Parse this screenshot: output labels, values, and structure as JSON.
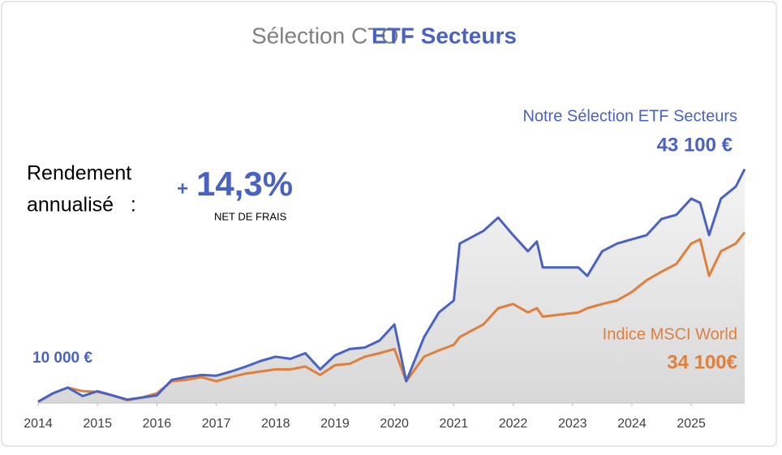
{
  "chart_data": {
    "type": "line",
    "title": [
      "Sélection CTO - ",
      "ETF Secteurs"
    ],
    "x": [
      2014,
      2014.25,
      2014.5,
      2014.75,
      2015,
      2015.25,
      2015.5,
      2015.75,
      2016,
      2016.25,
      2016.5,
      2016.75,
      2017,
      2017.25,
      2017.5,
      2017.75,
      2018,
      2018.25,
      2018.5,
      2018.75,
      2019,
      2019.25,
      2019.5,
      2019.75,
      2020,
      2020.2,
      2020.5,
      2020.75,
      2021,
      2021.1,
      2021.5,
      2021.75,
      2022,
      2022.25,
      2022.4,
      2022.5,
      2023.1,
      2023.25,
      2023.5,
      2023.75,
      2024,
      2024.25,
      2024.5,
      2024.75,
      2025,
      2025.15,
      2025.3,
      2025.5,
      2025.75,
      2025.9
    ],
    "series": [
      {
        "name": "Notre Sélection ETF Secteurs",
        "color": "#4a63c0",
        "values": [
          10000,
          11200,
          12000,
          10800,
          11500,
          10900,
          10300,
          10600,
          10900,
          13100,
          13500,
          13800,
          13700,
          14300,
          15000,
          15800,
          16400,
          16100,
          16900,
          14600,
          16600,
          17500,
          17700,
          18700,
          21000,
          12900,
          19200,
          22700,
          24400,
          32500,
          34300,
          36200,
          33700,
          31400,
          32800,
          29100,
          29100,
          27900,
          31400,
          32500,
          33100,
          33700,
          36000,
          36600,
          38900,
          38300,
          33700,
          38900,
          40600,
          43100
        ]
      },
      {
        "name": "Indice MSCI World",
        "color": "#e07f3c",
        "values": [
          10000,
          11200,
          12000,
          11500,
          11400,
          10900,
          10200,
          10600,
          11200,
          12900,
          13100,
          13500,
          12900,
          13500,
          14000,
          14300,
          14600,
          14600,
          15000,
          13800,
          15200,
          15400,
          16400,
          16900,
          17500,
          12900,
          16400,
          17300,
          18100,
          19200,
          21000,
          23300,
          23900,
          22700,
          23300,
          22100,
          22700,
          23300,
          23900,
          24400,
          25600,
          27300,
          28500,
          29600,
          32500,
          33100,
          27900,
          31400,
          32500,
          34100
        ]
      }
    ],
    "annotations": [
      "43 100 €",
      "10 000 €",
      "34 100€",
      "Rendement",
      "annualisé   :",
      "+",
      "14,3%",
      "NET DE FRAIS"
    ],
    "xlim": [
      2014,
      2025.9
    ],
    "xticks": [
      2014,
      2015,
      2016,
      2017,
      2018,
      2019,
      2020,
      2021,
      2022,
      2023,
      2024,
      2025
    ],
    "ylim": [
      9800,
      45000
    ],
    "area_fill": true
  }
}
